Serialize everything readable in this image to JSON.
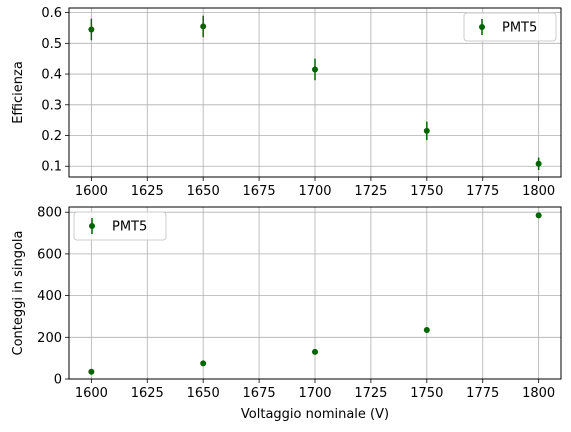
{
  "chart_data": [
    {
      "type": "scatter",
      "error_bars": true,
      "x": [
        1600,
        1650,
        1700,
        1750,
        1800
      ],
      "series": [
        {
          "name": "PMT5",
          "values": [
            0.545,
            0.555,
            0.415,
            0.215,
            0.108
          ],
          "errors": [
            0.035,
            0.035,
            0.035,
            0.03,
            0.02
          ]
        }
      ],
      "xlabel": "",
      "ylabel": "Efficienza",
      "xlim": [
        1590,
        1810
      ],
      "ylim": [
        0.065,
        0.615
      ],
      "x_ticks": [
        "1600",
        "1625",
        "1650",
        "1675",
        "1700",
        "1725",
        "1750",
        "1775",
        "1800"
      ],
      "y_ticks": [
        "0.1",
        "0.2",
        "0.3",
        "0.4",
        "0.5",
        "0.6"
      ],
      "grid": true,
      "legend": "top-right",
      "color": "#006400"
    },
    {
      "type": "scatter",
      "error_bars": true,
      "x": [
        1600,
        1650,
        1700,
        1750,
        1800
      ],
      "series": [
        {
          "name": "PMT5",
          "values": [
            35,
            75,
            130,
            235,
            785
          ],
          "errors": [
            0,
            0,
            0,
            0,
            0
          ]
        }
      ],
      "xlabel": "Voltaggio nominale (V)",
      "ylabel": "Conteggi in singola",
      "xlim": [
        1590,
        1810
      ],
      "ylim": [
        0,
        825
      ],
      "x_ticks": [
        "1600",
        "1625",
        "1650",
        "1675",
        "1700",
        "1725",
        "1750",
        "1775",
        "1800"
      ],
      "y_ticks": [
        "0",
        "200",
        "400",
        "600",
        "800"
      ],
      "grid": true,
      "legend": "top-left",
      "color": "#006400"
    }
  ]
}
